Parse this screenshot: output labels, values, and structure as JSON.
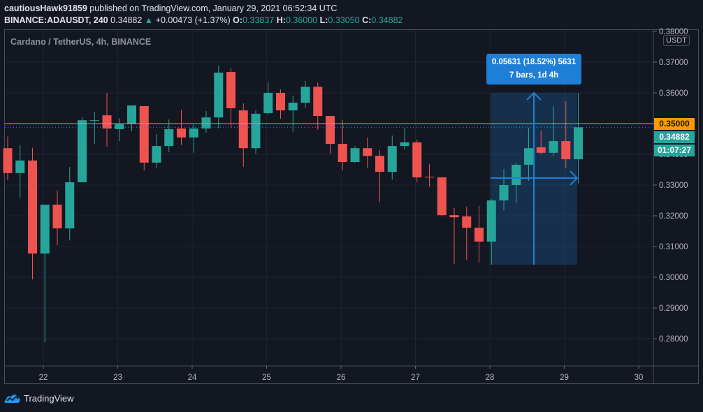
{
  "header": {
    "publisher": "cautiousHawk91859",
    "published_text": " published on TradingView.com, January 29, 2021 06:52:34 UTC",
    "symbol": "BINANCE:ADAUSDT, 240",
    "last": "0.34882",
    "change": "+0.00473 (+1.37%)",
    "o_label": "O:",
    "o": "0.33837",
    "h_label": "H:",
    "h": "0.36000",
    "l_label": "L:",
    "l": "0.33050",
    "c_label": "C:",
    "c": "0.34882"
  },
  "chart_title": "Cardano / TetherUS, 4h, BINANCE",
  "currency_badge": "USDT",
  "price_tags": {
    "alert_line": "0.35000",
    "last_price": "0.34882",
    "countdown": "01:07:27"
  },
  "measure_tooltip": {
    "line1": "0.05631 (18.52%) 5631",
    "line2": "7 bars, 1d 4h"
  },
  "footer": {
    "brand": "TradingView"
  },
  "colors": {
    "up": "#26a69a",
    "down": "#ef5350",
    "alert": "#ff9800",
    "measure": "#1e7fd6",
    "background": "#131722"
  },
  "chart_data": {
    "type": "candlestick",
    "title": "Cardano / TetherUS, 4h, BINANCE",
    "xlabel": "",
    "ylabel": "USDT",
    "x_ticks": [
      "22",
      "23",
      "24",
      "25",
      "26",
      "27",
      "28",
      "29",
      "30"
    ],
    "y_ticks": [
      "0.38000",
      "0.37000",
      "0.36000",
      "0.35000",
      "0.34000",
      "0.33000",
      "0.32000",
      "0.31000",
      "0.30000",
      "0.29000",
      "0.28000"
    ],
    "ylim": [
      0.2765,
      0.3807
    ],
    "grid": true,
    "horizontal_line": 0.35,
    "last_price": 0.34882,
    "candles": [
      {
        "o": 0.342,
        "h": 0.3458,
        "l": 0.3316,
        "c": 0.3339
      },
      {
        "o": 0.3339,
        "h": 0.343,
        "l": 0.3259,
        "c": 0.338
      },
      {
        "o": 0.338,
        "h": 0.3421,
        "l": 0.2993,
        "c": 0.3077
      },
      {
        "o": 0.3077,
        "h": 0.3234,
        "l": 0.2788,
        "c": 0.3236
      },
      {
        "o": 0.3236,
        "h": 0.3282,
        "l": 0.3105,
        "c": 0.3159
      },
      {
        "o": 0.3159,
        "h": 0.3359,
        "l": 0.312,
        "c": 0.3309
      },
      {
        "o": 0.3309,
        "h": 0.352,
        "l": 0.333,
        "c": 0.3511
      },
      {
        "o": 0.3509,
        "h": 0.3539,
        "l": 0.3434,
        "c": 0.3511
      },
      {
        "o": 0.3527,
        "h": 0.36,
        "l": 0.3425,
        "c": 0.3484
      },
      {
        "o": 0.3482,
        "h": 0.3518,
        "l": 0.3443,
        "c": 0.3498
      },
      {
        "o": 0.3498,
        "h": 0.3557,
        "l": 0.3475,
        "c": 0.3559
      },
      {
        "o": 0.3557,
        "h": 0.3543,
        "l": 0.3348,
        "c": 0.3373
      },
      {
        "o": 0.3373,
        "h": 0.3466,
        "l": 0.3355,
        "c": 0.3427
      },
      {
        "o": 0.3427,
        "h": 0.3514,
        "l": 0.3407,
        "c": 0.3482
      },
      {
        "o": 0.3484,
        "h": 0.3545,
        "l": 0.343,
        "c": 0.3455
      },
      {
        "o": 0.3455,
        "h": 0.3498,
        "l": 0.3405,
        "c": 0.3484
      },
      {
        "o": 0.3484,
        "h": 0.3541,
        "l": 0.347,
        "c": 0.352
      },
      {
        "o": 0.352,
        "h": 0.3689,
        "l": 0.3484,
        "c": 0.3666
      },
      {
        "o": 0.3668,
        "h": 0.368,
        "l": 0.3489,
        "c": 0.355
      },
      {
        "o": 0.3543,
        "h": 0.3566,
        "l": 0.3359,
        "c": 0.342
      },
      {
        "o": 0.342,
        "h": 0.3543,
        "l": 0.3402,
        "c": 0.3532
      },
      {
        "o": 0.3534,
        "h": 0.3634,
        "l": 0.353,
        "c": 0.36
      },
      {
        "o": 0.36,
        "h": 0.3611,
        "l": 0.3516,
        "c": 0.3543
      },
      {
        "o": 0.3543,
        "h": 0.3591,
        "l": 0.3473,
        "c": 0.3568
      },
      {
        "o": 0.3568,
        "h": 0.3639,
        "l": 0.3552,
        "c": 0.362
      },
      {
        "o": 0.362,
        "h": 0.3634,
        "l": 0.348,
        "c": 0.3525
      },
      {
        "o": 0.3525,
        "h": 0.3525,
        "l": 0.3402,
        "c": 0.3434
      },
      {
        "o": 0.3434,
        "h": 0.3511,
        "l": 0.3348,
        "c": 0.3375
      },
      {
        "o": 0.3375,
        "h": 0.3427,
        "l": 0.3373,
        "c": 0.342
      },
      {
        "o": 0.342,
        "h": 0.3455,
        "l": 0.3355,
        "c": 0.3395
      },
      {
        "o": 0.3395,
        "h": 0.3414,
        "l": 0.3245,
        "c": 0.3343
      },
      {
        "o": 0.3343,
        "h": 0.3461,
        "l": 0.3318,
        "c": 0.3427
      },
      {
        "o": 0.3427,
        "h": 0.3486,
        "l": 0.3416,
        "c": 0.3439
      },
      {
        "o": 0.3439,
        "h": 0.3448,
        "l": 0.3309,
        "c": 0.3325
      },
      {
        "o": 0.3327,
        "h": 0.3368,
        "l": 0.3295,
        "c": 0.3325
      },
      {
        "o": 0.3325,
        "h": 0.3325,
        "l": 0.3198,
        "c": 0.3202
      },
      {
        "o": 0.3202,
        "h": 0.3225,
        "l": 0.3043,
        "c": 0.3195
      },
      {
        "o": 0.3198,
        "h": 0.323,
        "l": 0.3057,
        "c": 0.3161
      },
      {
        "o": 0.3161,
        "h": 0.3232,
        "l": 0.3048,
        "c": 0.3116
      },
      {
        "o": 0.3116,
        "h": 0.3255,
        "l": 0.3041,
        "c": 0.325
      },
      {
        "o": 0.325,
        "h": 0.3352,
        "l": 0.3218,
        "c": 0.33
      },
      {
        "o": 0.33,
        "h": 0.3373,
        "l": 0.3241,
        "c": 0.3366
      },
      {
        "o": 0.3366,
        "h": 0.3486,
        "l": 0.3314,
        "c": 0.342
      },
      {
        "o": 0.3423,
        "h": 0.3477,
        "l": 0.34,
        "c": 0.3405
      },
      {
        "o": 0.3405,
        "h": 0.3557,
        "l": 0.3395,
        "c": 0.3443
      },
      {
        "o": 0.3443,
        "h": 0.3573,
        "l": 0.3355,
        "c": 0.3384
      },
      {
        "o": 0.3384,
        "h": 0.36,
        "l": 0.3305,
        "c": 0.3488
      }
    ],
    "annotations": [
      {
        "type": "price_range_measure",
        "text": "0.05631 (18.52%) 5631",
        "subtext": "7 bars, 1d 4h",
        "from_price": 0.3041,
        "to_price": 0.36
      }
    ]
  }
}
